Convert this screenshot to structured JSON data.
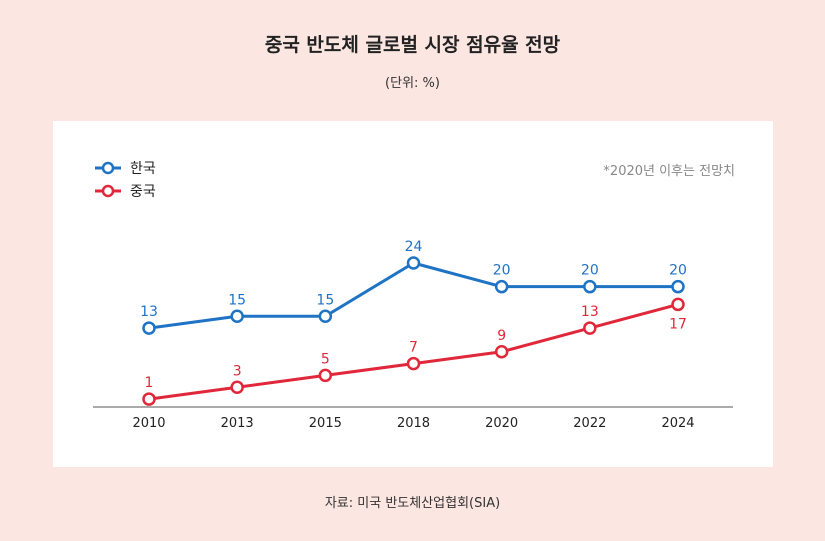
{
  "chart_data": {
    "type": "line",
    "title": "중국 반도체 글로벌 시장 점유율 전망",
    "unit_label": "(단위: %)",
    "note": "*2020년 이후는 전망치",
    "source": "자료: 미국 반도체산업협회(SIA)",
    "categories": [
      "2010",
      "2013",
      "2015",
      "2018",
      "2020",
      "2022",
      "2024"
    ],
    "ylim": [
      0,
      30
    ],
    "legend_position": "top-left",
    "series": [
      {
        "name": "한국",
        "color": "#1f73c4",
        "values": [
          13,
          15,
          15,
          24,
          20,
          20,
          20
        ],
        "label_position": "above"
      },
      {
        "name": "중국",
        "color": "#e0283a",
        "values": [
          1,
          3,
          5,
          7,
          9,
          13,
          17
        ],
        "label_position": "above_except_last"
      }
    ]
  }
}
